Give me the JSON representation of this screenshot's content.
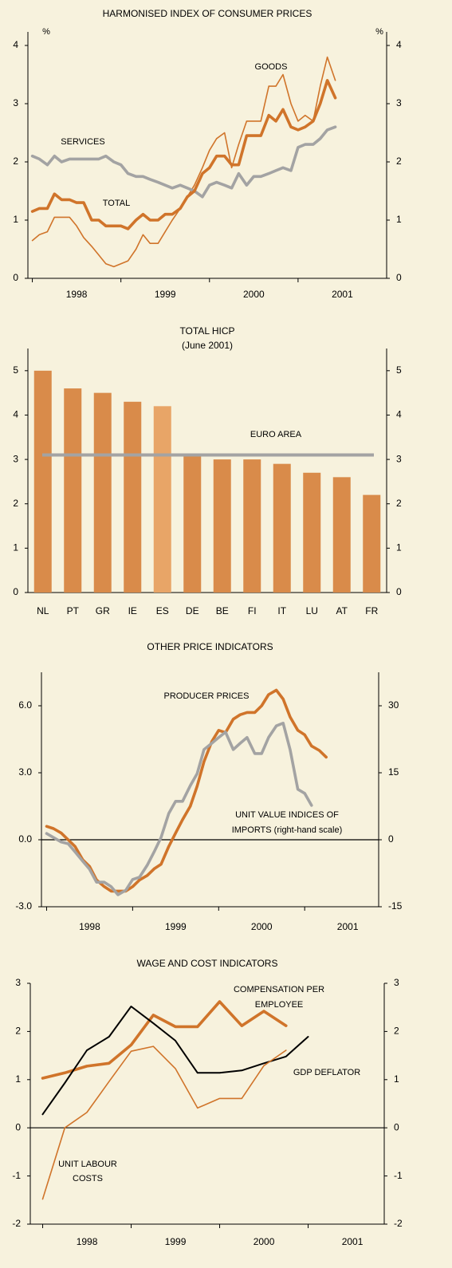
{
  "chart_data": [
    {
      "type": "line",
      "title": "HARMONISED INDEX OF CONSUMER PRICES",
      "ylabel": "%",
      "y2label": "%",
      "x": [
        1998,
        1998.08,
        1998.17,
        1998.25,
        1998.33,
        1998.42,
        1998.5,
        1998.58,
        1998.67,
        1998.75,
        1998.83,
        1998.92,
        1999,
        1999.08,
        1999.17,
        1999.25,
        1999.33,
        1999.42,
        1999.5,
        1999.58,
        1999.67,
        1999.75,
        1999.83,
        1999.92,
        2000,
        2000.08,
        2000.17,
        2000.25,
        2000.33,
        2000.42,
        2000.5,
        2000.58,
        2000.67,
        2000.75,
        2000.83,
        2000.92,
        2001,
        2001.08,
        2001.17,
        2001.25,
        2001.33,
        2001.42
      ],
      "xlim": [
        1997.95,
        2002
      ],
      "xticks": [
        {
          "value": 1998,
          "label": "1998"
        },
        {
          "value": 1999,
          "label": "1999"
        },
        {
          "value": 2000,
          "label": "2000"
        },
        {
          "value": 2001,
          "label": "2001"
        }
      ],
      "ylim": [
        0,
        4
      ],
      "yticks": [
        0,
        1,
        2,
        3,
        4
      ],
      "y2lim": [
        0,
        4
      ],
      "y2ticks": [
        0,
        1,
        2,
        3,
        4
      ],
      "grid": false,
      "series": [
        {
          "name": "GOODS",
          "color": "#d0742a",
          "weight": "thin",
          "values": [
            0.65,
            0.75,
            0.8,
            1.05,
            1.05,
            1.05,
            0.9,
            0.7,
            0.55,
            0.4,
            0.25,
            0.2,
            0.25,
            0.3,
            0.5,
            0.75,
            0.6,
            0.6,
            0.8,
            1.0,
            1.2,
            1.4,
            1.6,
            1.9,
            2.2,
            2.4,
            2.5,
            1.9,
            2.3,
            2.7,
            2.7,
            2.7,
            3.3,
            3.3,
            3.5,
            3.0,
            2.7,
            2.8,
            2.7,
            3.3,
            3.8,
            3.4
          ]
        },
        {
          "name": "SERVICES",
          "color": "#a3a3a3",
          "weight": "thick",
          "values": [
            2.1,
            2.05,
            1.95,
            2.1,
            2.0,
            2.05,
            2.05,
            2.05,
            2.05,
            2.05,
            2.1,
            2.0,
            1.95,
            1.8,
            1.75,
            1.75,
            1.7,
            1.65,
            1.6,
            1.55,
            1.6,
            1.55,
            1.5,
            1.4,
            1.6,
            1.65,
            1.6,
            1.55,
            1.8,
            1.6,
            1.75,
            1.75,
            1.8,
            1.85,
            1.9,
            1.85,
            2.25,
            2.3,
            2.3,
            2.4,
            2.55,
            2.6
          ]
        },
        {
          "name": "TOTAL",
          "color": "#d0742a",
          "weight": "thick",
          "values": [
            1.15,
            1.2,
            1.2,
            1.45,
            1.35,
            1.35,
            1.3,
            1.3,
            1.0,
            1.0,
            0.9,
            0.9,
            0.9,
            0.85,
            1.0,
            1.1,
            1.0,
            1.0,
            1.1,
            1.1,
            1.2,
            1.4,
            1.5,
            1.8,
            1.9,
            2.1,
            2.1,
            1.95,
            1.95,
            2.45,
            2.45,
            2.45,
            2.8,
            2.7,
            2.9,
            2.6,
            2.55,
            2.6,
            2.7,
            3.0,
            3.4,
            3.1
          ]
        }
      ]
    },
    {
      "type": "bar",
      "title": "TOTAL HICP",
      "subtitle": "(June 2001)",
      "categories": [
        "NL",
        "PT",
        "GR",
        "IE",
        "ES",
        "DE",
        "BE",
        "FI",
        "IT",
        "LU",
        "AT",
        "FR"
      ],
      "values": [
        5.0,
        4.6,
        4.5,
        4.3,
        4.2,
        3.1,
        3.0,
        3.0,
        2.9,
        2.7,
        2.6,
        2.2
      ],
      "colors": [
        "#d98b4a",
        "#d98b4a",
        "#d98b4a",
        "#d98b4a",
        "#e8a567",
        "#d98b4a",
        "#d98b4a",
        "#d98b4a",
        "#d98b4a",
        "#d98b4a",
        "#d98b4a",
        "#d98b4a"
      ],
      "ylim": [
        0,
        5.5
      ],
      "yticks": [
        0,
        1,
        2,
        3,
        4,
        5
      ],
      "y2lim": [
        0,
        5.5
      ],
      "y2ticks": [
        0,
        1,
        2,
        3,
        4,
        5
      ],
      "grid": false,
      "reference": {
        "name": "EURO AREA",
        "value": 3.1,
        "color": "#a3a3a3"
      }
    },
    {
      "type": "line",
      "title": "OTHER PRICE INDICATORS",
      "zero_line": true,
      "x": [
        1998,
        1998.08,
        1998.17,
        1998.25,
        1998.33,
        1998.42,
        1998.5,
        1998.58,
        1998.67,
        1998.75,
        1998.83,
        1998.92,
        1999,
        1999.08,
        1999.17,
        1999.25,
        1999.33,
        1999.42,
        1999.5,
        1999.58,
        1999.67,
        1999.75,
        1999.83,
        1999.92,
        2000,
        2000.08,
        2000.17,
        2000.25,
        2000.33,
        2000.42,
        2000.5,
        2000.58,
        2000.67,
        2000.75,
        2000.83,
        2000.92,
        2001,
        2001.08,
        2001.17,
        2001.25
      ],
      "xlim": [
        1997.94,
        2001.86
      ],
      "xticks": [
        {
          "value": 1998,
          "label": "1998"
        },
        {
          "value": 1999,
          "label": "1999"
        },
        {
          "value": 2000,
          "label": "2000"
        },
        {
          "value": 2001,
          "label": "2001"
        }
      ],
      "ylim": [
        -3,
        7.5
      ],
      "yticks": [
        {
          "value": -3,
          "label": "-3.0"
        },
        {
          "value": 0,
          "label": "0.0"
        },
        {
          "value": 3,
          "label": "3.0"
        },
        {
          "value": 6,
          "label": "6.0"
        }
      ],
      "y2lim": [
        -15,
        37.5
      ],
      "y2ticks": [
        -15,
        0,
        15,
        30
      ],
      "grid": false,
      "series": [
        {
          "name": "PRODUCER PRICES",
          "color": "#d0742a",
          "weight": "thick",
          "values": [
            0.6,
            0.5,
            0.3,
            0.0,
            -0.3,
            -0.9,
            -1.2,
            -1.8,
            -2.1,
            -2.3,
            -2.3,
            -2.3,
            -2.1,
            -1.8,
            -1.6,
            -1.3,
            -1.1,
            -0.3,
            0.3,
            0.9,
            1.5,
            2.4,
            3.5,
            4.4,
            4.9,
            4.8,
            5.4,
            5.6,
            5.7,
            5.7,
            6.0,
            6.5,
            6.7,
            6.3,
            5.5,
            4.9,
            4.7,
            4.2,
            4.0,
            3.7
          ]
        },
        {
          "name": [
            "UNIT VALUE INDICES OF",
            "IMPORTS (right-hand scale)"
          ],
          "color": "#a3a3a3",
          "weight": "thick",
          "axis": "y2",
          "values": [
            1.4,
            0.5,
            -0.5,
            -0.9,
            -2.7,
            -4.8,
            -6.6,
            -9.5,
            -9.5,
            -10.5,
            -12.3,
            -11.3,
            -8.9,
            -8.4,
            -5.7,
            -2.7,
            0.5,
            5.9,
            8.6,
            8.6,
            12.1,
            14.8,
            20.2,
            21.6,
            22.9,
            24.1,
            20.2,
            21.6,
            22.9,
            19.3,
            19.3,
            22.9,
            25.5,
            26.1,
            20.2,
            11.3,
            10.4,
            7.7,
            null,
            null
          ]
        }
      ]
    },
    {
      "type": "line",
      "title": "WAGE AND COST INDICATORS",
      "zero_line": true,
      "x": [
        1998,
        1998.25,
        1998.5,
        1998.75,
        1999,
        1999.25,
        1999.5,
        1999.75,
        2000,
        2000.25,
        2000.5,
        2000.75,
        2001
      ],
      "xlim": [
        1997.86,
        2001.86
      ],
      "xticks": [
        {
          "value": 1998,
          "label": "1998"
        },
        {
          "value": 1999,
          "label": "1999"
        },
        {
          "value": 2000,
          "label": "2000"
        },
        {
          "value": 2001,
          "label": "2001"
        }
      ],
      "ylim": [
        -2,
        3
      ],
      "yticks": [
        -2,
        -1,
        0,
        1,
        2,
        3
      ],
      "y2lim": [
        -2,
        3
      ],
      "y2ticks": [
        -2,
        -1,
        0,
        1,
        2,
        3
      ],
      "grid": false,
      "series": [
        {
          "name": [
            "COMPENSATION PER",
            "EMPLOYEE"
          ],
          "color": "#d0742a",
          "weight": "thick",
          "values": [
            1.03,
            1.14,
            1.28,
            1.34,
            1.72,
            2.34,
            2.1,
            2.1,
            2.62,
            2.12,
            2.42,
            2.12,
            null
          ]
        },
        {
          "name": "GDP DEFLATOR",
          "color": "#000000",
          "weight": "medium",
          "values": [
            0.28,
            0.93,
            1.61,
            1.89,
            2.52,
            2.17,
            1.81,
            1.14,
            1.14,
            1.19,
            1.34,
            1.48,
            1.89
          ]
        },
        {
          "name": [
            "UNIT LABOUR",
            "COSTS"
          ],
          "color": "#d0742a",
          "weight": "thin",
          "values": [
            -1.48,
            0,
            0.32,
            0.96,
            1.59,
            1.69,
            1.23,
            0.41,
            0.61,
            0.61,
            1.29,
            1.61,
            null
          ]
        }
      ]
    }
  ]
}
